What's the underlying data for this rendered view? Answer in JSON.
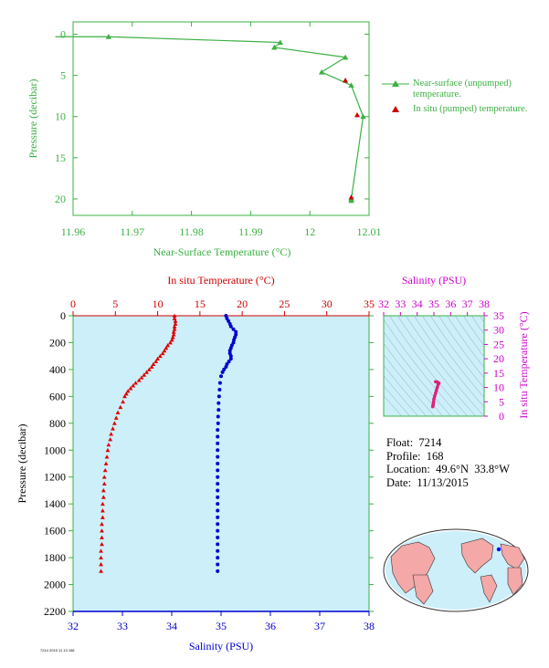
{
  "chart_data": [
    {
      "type": "line",
      "title": "",
      "xlabel": "Near-Surface Temperature (°C)",
      "ylabel": "Pressure (decibar)",
      "xlim": [
        11.96,
        12.01
      ],
      "ylim": [
        22,
        -1.5
      ],
      "xticks": [
        "11.96",
        "11.97",
        "11.98",
        "11.99",
        "12",
        "12.01"
      ],
      "yticks": [
        "0",
        "5",
        "10",
        "15",
        "20"
      ],
      "series": [
        {
          "name": "Near-surface (unpumped) temperature.",
          "color": "#3cb043",
          "marker": "triangle",
          "points": [
            [
              11.957,
              0.3
            ],
            [
              11.966,
              0.3
            ],
            [
              11.995,
              1.0
            ],
            [
              11.994,
              1.6
            ],
            [
              12.006,
              2.8
            ],
            [
              12.002,
              4.6
            ],
            [
              12.007,
              6.2
            ],
            [
              12.009,
              10.0
            ],
            [
              12.007,
              20.0
            ],
            [
              12.007,
              20.2
            ]
          ]
        },
        {
          "name": "In situ (pumped) temperature.",
          "color": "#cc0000",
          "marker": "triangle",
          "points": [
            [
              12.006,
              5.6
            ],
            [
              12.008,
              9.8
            ],
            [
              12.007,
              19.8
            ]
          ]
        }
      ]
    },
    {
      "type": "scatter",
      "xlabel_top": "In situ Temperature (°C)",
      "xlabel_bottom": "Salinity (PSU)",
      "ylabel": "Pressure (decibar)",
      "temp_xlim": [
        0,
        35
      ],
      "sal_xlim": [
        32,
        38
      ],
      "ylim": [
        2200,
        0
      ],
      "temp_ticks": [
        "0",
        "5",
        "10",
        "15",
        "20",
        "25",
        "30",
        "35"
      ],
      "sal_ticks": [
        "32",
        "33",
        "34",
        "35",
        "36",
        "37",
        "38"
      ],
      "yticks": [
        "0",
        "200",
        "400",
        "600",
        "800",
        "1000",
        "1200",
        "1400",
        "1600",
        "1800",
        "2000",
        "2200"
      ],
      "temperature": {
        "color": "#dd0000",
        "points": [
          [
            12.0,
            0
          ],
          [
            12.0,
            20
          ],
          [
            12.1,
            40
          ],
          [
            12.1,
            60
          ],
          [
            12.0,
            80
          ],
          [
            12.0,
            100
          ],
          [
            11.9,
            120
          ],
          [
            11.9,
            140
          ],
          [
            11.8,
            160
          ],
          [
            11.7,
            180
          ],
          [
            11.5,
            200
          ],
          [
            11.2,
            220
          ],
          [
            11.0,
            240
          ],
          [
            10.8,
            260
          ],
          [
            10.6,
            280
          ],
          [
            10.3,
            300
          ],
          [
            10.0,
            320
          ],
          [
            9.8,
            340
          ],
          [
            9.5,
            360
          ],
          [
            9.3,
            380
          ],
          [
            9.0,
            400
          ],
          [
            8.7,
            420
          ],
          [
            8.4,
            440
          ],
          [
            8.1,
            460
          ],
          [
            7.8,
            480
          ],
          [
            7.4,
            500
          ],
          [
            7.1,
            520
          ],
          [
            6.8,
            540
          ],
          [
            6.5,
            560
          ],
          [
            6.3,
            580
          ],
          [
            6.1,
            600
          ],
          [
            5.9,
            640
          ],
          [
            5.6,
            680
          ],
          [
            5.3,
            720
          ],
          [
            5.1,
            760
          ],
          [
            4.9,
            800
          ],
          [
            4.7,
            840
          ],
          [
            4.5,
            880
          ],
          [
            4.4,
            920
          ],
          [
            4.2,
            960
          ],
          [
            4.1,
            1000
          ],
          [
            4.0,
            1050
          ],
          [
            3.9,
            1100
          ],
          [
            3.8,
            1150
          ],
          [
            3.7,
            1200
          ],
          [
            3.7,
            1250
          ],
          [
            3.6,
            1300
          ],
          [
            3.6,
            1350
          ],
          [
            3.5,
            1400
          ],
          [
            3.5,
            1450
          ],
          [
            3.5,
            1500
          ],
          [
            3.4,
            1550
          ],
          [
            3.4,
            1600
          ],
          [
            3.4,
            1650
          ],
          [
            3.4,
            1700
          ],
          [
            3.3,
            1750
          ],
          [
            3.3,
            1800
          ],
          [
            3.3,
            1850
          ],
          [
            3.3,
            1900
          ]
        ]
      },
      "salinity": {
        "color": "#0000cc",
        "points": [
          [
            35.1,
            0
          ],
          [
            35.12,
            20
          ],
          [
            35.15,
            40
          ],
          [
            35.18,
            60
          ],
          [
            35.2,
            80
          ],
          [
            35.25,
            100
          ],
          [
            35.3,
            120
          ],
          [
            35.3,
            140
          ],
          [
            35.28,
            160
          ],
          [
            35.26,
            180
          ],
          [
            35.25,
            200
          ],
          [
            35.22,
            220
          ],
          [
            35.2,
            240
          ],
          [
            35.18,
            260
          ],
          [
            35.18,
            280
          ],
          [
            35.2,
            300
          ],
          [
            35.2,
            320
          ],
          [
            35.16,
            340
          ],
          [
            35.12,
            360
          ],
          [
            35.1,
            380
          ],
          [
            35.06,
            400
          ],
          [
            35.03,
            420
          ],
          [
            35.0,
            450
          ],
          [
            34.98,
            500
          ],
          [
            34.97,
            550
          ],
          [
            34.96,
            600
          ],
          [
            34.95,
            650
          ],
          [
            34.95,
            700
          ],
          [
            34.94,
            750
          ],
          [
            34.94,
            800
          ],
          [
            34.93,
            850
          ],
          [
            34.93,
            900
          ],
          [
            34.93,
            950
          ],
          [
            34.93,
            1000
          ],
          [
            34.93,
            1050
          ],
          [
            34.93,
            1100
          ],
          [
            34.93,
            1150
          ],
          [
            34.93,
            1200
          ],
          [
            34.93,
            1250
          ],
          [
            34.93,
            1300
          ],
          [
            34.93,
            1350
          ],
          [
            34.93,
            1400
          ],
          [
            34.93,
            1450
          ],
          [
            34.93,
            1500
          ],
          [
            34.93,
            1550
          ],
          [
            34.93,
            1600
          ],
          [
            34.93,
            1650
          ],
          [
            34.93,
            1700
          ],
          [
            34.93,
            1750
          ],
          [
            34.93,
            1800
          ],
          [
            34.93,
            1850
          ],
          [
            34.93,
            1900
          ]
        ]
      }
    },
    {
      "type": "scatter",
      "xlabel_top": "Salinity (PSU)",
      "ylabel": "In situ Temperature (°C)",
      "xlim": [
        32,
        38
      ],
      "ylim": [
        0,
        35
      ],
      "xticks": [
        "32",
        "33",
        "34",
        "35",
        "36",
        "37",
        "38"
      ],
      "yticks": [
        "0",
        "5",
        "10",
        "15",
        "20",
        "25",
        "30",
        "35"
      ],
      "color": "#e0207a",
      "points": [
        [
          35.1,
          12.0
        ],
        [
          35.2,
          11.9
        ],
        [
          35.3,
          11.5
        ],
        [
          35.25,
          11.0
        ],
        [
          35.2,
          10.0
        ],
        [
          35.15,
          9.0
        ],
        [
          35.1,
          8.0
        ],
        [
          35.05,
          7.0
        ],
        [
          35.0,
          6.0
        ],
        [
          34.98,
          5.0
        ],
        [
          34.96,
          4.2
        ],
        [
          34.95,
          3.8
        ],
        [
          34.94,
          3.5
        ],
        [
          34.93,
          3.3
        ]
      ]
    }
  ],
  "info": {
    "float": "Float:  7214",
    "profile": "Profile:  168",
    "location": "Location:  49.6°N  33.8°W",
    "date": "Date:  11/13/2015"
  },
  "legend": {
    "unpumped": "Near-surface (unpumped) temperature.",
    "pumped": "In situ (pumped) temperature."
  },
  "footer": "7214 2015 11 13 168"
}
